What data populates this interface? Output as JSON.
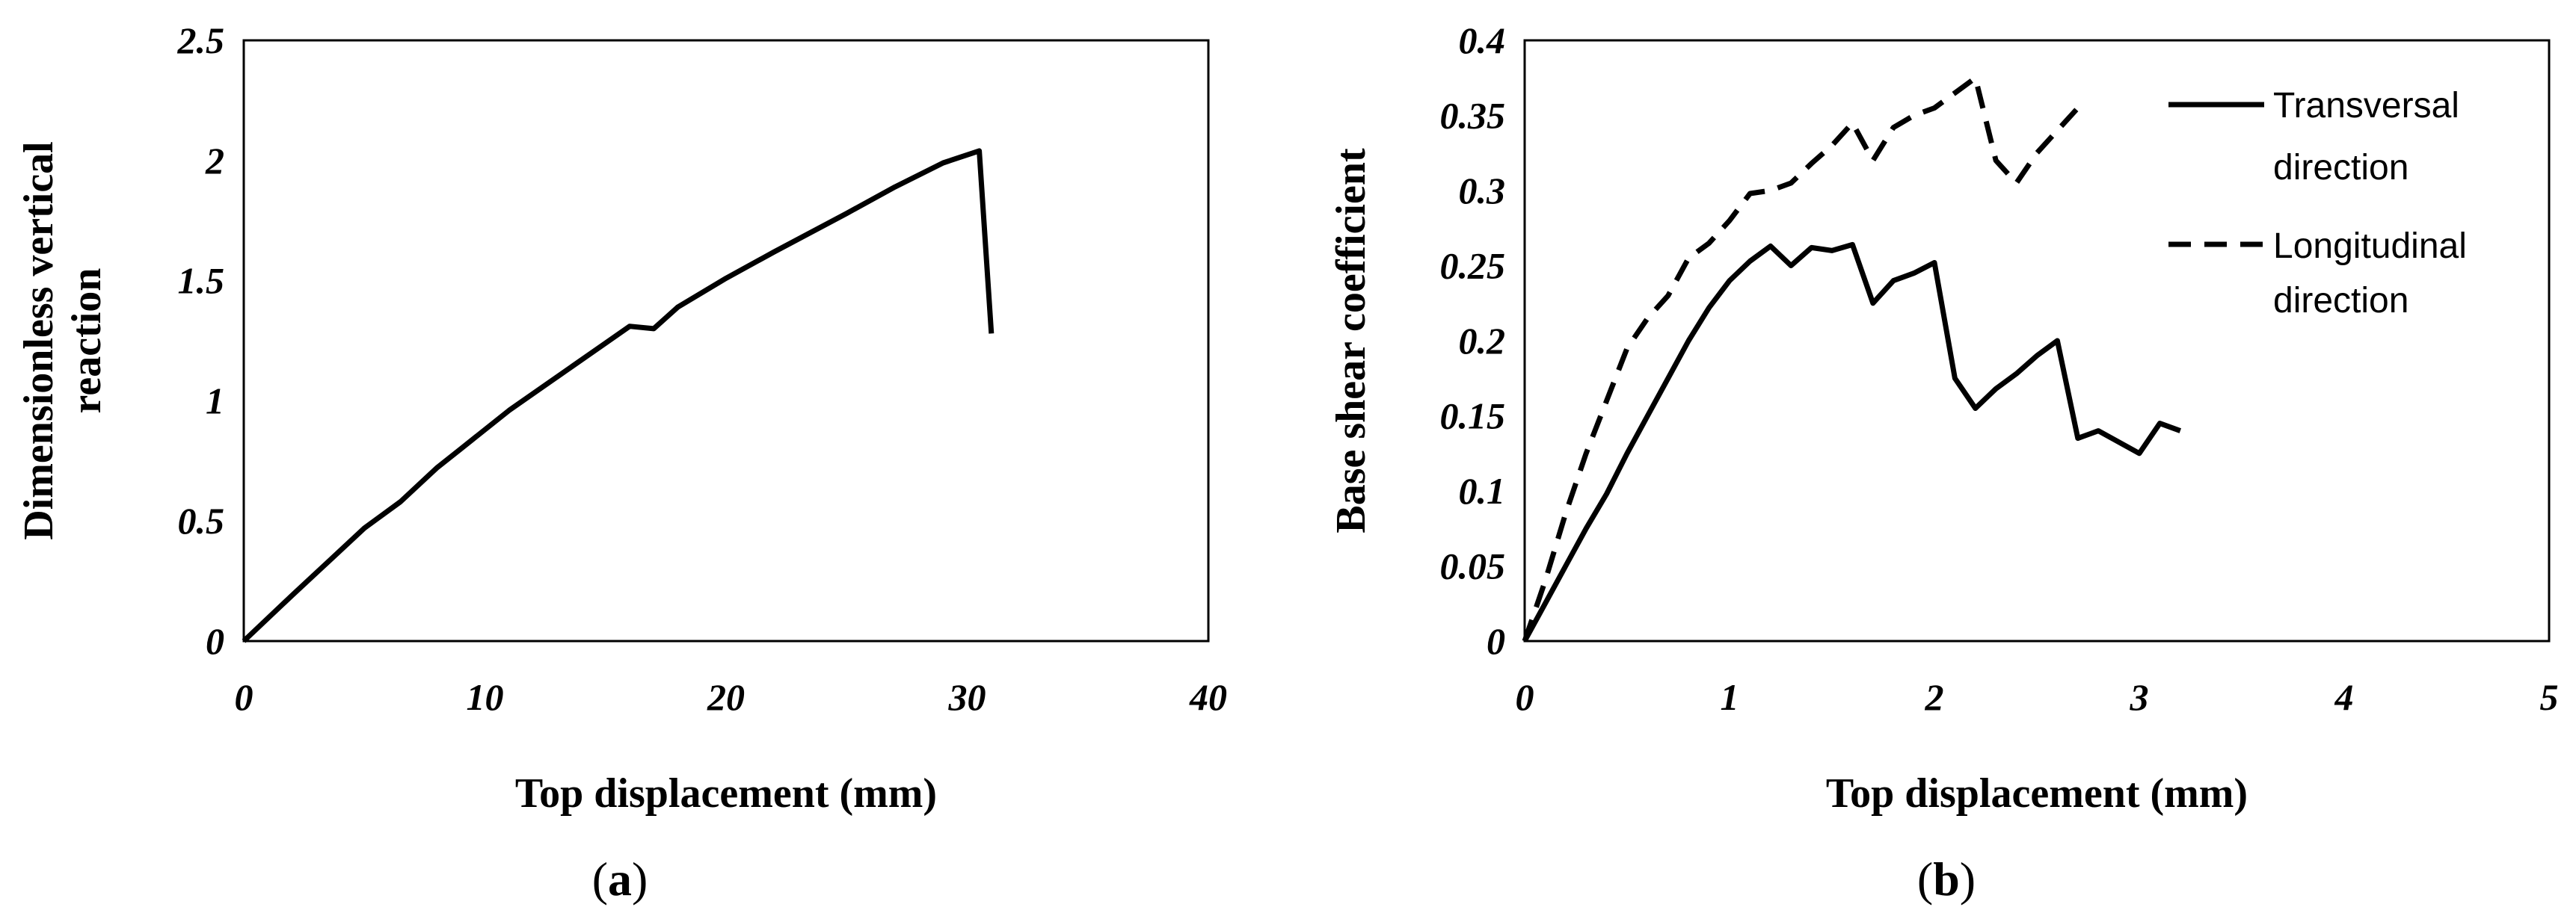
{
  "chart_data": [
    {
      "type": "line",
      "caption": "a",
      "xlabel": "Top displacement (mm)",
      "ylabel_lines": [
        "Dimensionless vertical",
        "reaction"
      ],
      "xlim": [
        0,
        40
      ],
      "ylim": [
        0,
        2.5
      ],
      "xticks": [
        "0",
        "10",
        "20",
        "30",
        "40"
      ],
      "yticks": [
        "0",
        "0.5",
        "1",
        "1.5",
        "2",
        "2.5"
      ],
      "grid": false,
      "series": [
        {
          "style": "solid",
          "points": [
            [
              0,
              0
            ],
            [
              2,
              0.19
            ],
            [
              3.5,
              0.33
            ],
            [
              5,
              0.47
            ],
            [
              6.5,
              0.58
            ],
            [
              8,
              0.72
            ],
            [
              9,
              0.8
            ],
            [
              11,
              0.96
            ],
            [
              13,
              1.1
            ],
            [
              15,
              1.24
            ],
            [
              16,
              1.31
            ],
            [
              17,
              1.3
            ],
            [
              18,
              1.39
            ],
            [
              20,
              1.51
            ],
            [
              22,
              1.62
            ],
            [
              25,
              1.78
            ],
            [
              27,
              1.89
            ],
            [
              29,
              1.99
            ],
            [
              30.5,
              2.04
            ],
            [
              31,
              1.28
            ]
          ]
        }
      ]
    },
    {
      "type": "line",
      "caption": "b",
      "xlabel": "Top displacement (mm)",
      "ylabel": "Base shear coefficient",
      "xlim": [
        0,
        5
      ],
      "ylim": [
        0,
        0.4
      ],
      "xticks": [
        "0",
        "1",
        "2",
        "3",
        "4",
        "5"
      ],
      "yticks": [
        "0",
        "0.05",
        "0.1",
        "0.15",
        "0.2",
        "0.25",
        "0.3",
        "0.35",
        "0.4"
      ],
      "grid": false,
      "legend_position": "top-right",
      "series": [
        {
          "name_lines": [
            "Transversal",
            "direction"
          ],
          "style": "solid",
          "points": [
            [
              0,
              0
            ],
            [
              0.1,
              0.025
            ],
            [
              0.2,
              0.05
            ],
            [
              0.3,
              0.075
            ],
            [
              0.4,
              0.098
            ],
            [
              0.5,
              0.125
            ],
            [
              0.6,
              0.15
            ],
            [
              0.7,
              0.175
            ],
            [
              0.8,
              0.2
            ],
            [
              0.9,
              0.222
            ],
            [
              1.0,
              0.24
            ],
            [
              1.1,
              0.253
            ],
            [
              1.2,
              0.263
            ],
            [
              1.3,
              0.25
            ],
            [
              1.4,
              0.262
            ],
            [
              1.5,
              0.26
            ],
            [
              1.6,
              0.264
            ],
            [
              1.7,
              0.225
            ],
            [
              1.8,
              0.24
            ],
            [
              1.9,
              0.245
            ],
            [
              2.0,
              0.252
            ],
            [
              2.1,
              0.175
            ],
            [
              2.2,
              0.155
            ],
            [
              2.3,
              0.168
            ],
            [
              2.4,
              0.178
            ],
            [
              2.5,
              0.19
            ],
            [
              2.6,
              0.2
            ],
            [
              2.7,
              0.135
            ],
            [
              2.8,
              0.14
            ],
            [
              3.0,
              0.125
            ],
            [
              3.1,
              0.145
            ],
            [
              3.2,
              0.14
            ]
          ]
        },
        {
          "name_lines": [
            "Longitudinal",
            "direction"
          ],
          "style": "dashed",
          "points": [
            [
              0,
              0
            ],
            [
              0.1,
              0.04
            ],
            [
              0.2,
              0.085
            ],
            [
              0.3,
              0.125
            ],
            [
              0.4,
              0.16
            ],
            [
              0.5,
              0.195
            ],
            [
              0.6,
              0.215
            ],
            [
              0.7,
              0.23
            ],
            [
              0.8,
              0.255
            ],
            [
              0.9,
              0.265
            ],
            [
              1.0,
              0.28
            ],
            [
              1.1,
              0.298
            ],
            [
              1.2,
              0.3
            ],
            [
              1.3,
              0.305
            ],
            [
              1.4,
              0.318
            ],
            [
              1.5,
              0.33
            ],
            [
              1.6,
              0.345
            ],
            [
              1.7,
              0.32
            ],
            [
              1.8,
              0.342
            ],
            [
              1.9,
              0.35
            ],
            [
              2.0,
              0.355
            ],
            [
              2.2,
              0.375
            ],
            [
              2.3,
              0.32
            ],
            [
              2.4,
              0.305
            ],
            [
              2.5,
              0.325
            ],
            [
              2.6,
              0.34
            ],
            [
              2.7,
              0.355
            ]
          ]
        }
      ]
    }
  ]
}
